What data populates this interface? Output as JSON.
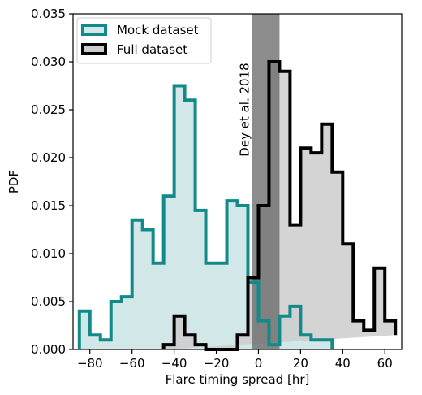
{
  "chart_data": {
    "type": "histogram",
    "xlabel": "Flare timing spread [hr]",
    "ylabel": "PDF",
    "xlim": [
      -88,
      68
    ],
    "ylim": [
      0,
      0.035
    ],
    "xticks": [
      -80,
      -60,
      -40,
      -20,
      0,
      20,
      40,
      60
    ],
    "yticks": [
      0.0,
      0.005,
      0.01,
      0.015,
      0.02,
      0.025,
      0.03,
      0.035
    ],
    "grid": false,
    "legend": "top-left",
    "series": [
      {
        "name": "Mock dataset",
        "edge_color": "#138a8a",
        "fill_color": "#d2e8e8",
        "bin_edges": [
          -85,
          -80,
          -75,
          -70,
          -65,
          -60,
          -55,
          -50,
          -45,
          -40,
          -35,
          -30,
          -25,
          -20,
          -15,
          -10,
          -5,
          0,
          5,
          10,
          15,
          20,
          25,
          30,
          35
        ],
        "values": [
          0.004,
          0.0015,
          0.001,
          0.005,
          0.0055,
          0.0135,
          0.0125,
          0.009,
          0.016,
          0.0275,
          0.026,
          0.0145,
          0.009,
          0.009,
          0.0155,
          0.015,
          0.007,
          0.003,
          0.0005,
          0.0035,
          0.0045,
          0.0015,
          0.001,
          0.001
        ]
      },
      {
        "name": "Full dataset",
        "edge_color": "#000000",
        "fill_color": "#cccccc",
        "bin_edges": [
          -45,
          -40,
          -35,
          -30,
          -25,
          -20,
          -15,
          -10,
          -5,
          0,
          5,
          10,
          15,
          20,
          25,
          30,
          35,
          40,
          45,
          50,
          55,
          60,
          65
        ],
        "values": [
          0.0005,
          0.0035,
          0.0015,
          0.0005,
          0.0,
          0.0,
          0.0,
          0.0015,
          0.0075,
          0.015,
          0.03,
          0.029,
          0.013,
          0.021,
          0.0205,
          0.0235,
          0.0185,
          0.011,
          0.003,
          0.002,
          0.0085,
          0.003,
          0.0015
        ]
      }
    ],
    "band": {
      "label": "Dey et al. 2018",
      "x_range": [
        -3,
        10
      ],
      "color": "#666666"
    },
    "tick_labels_x": [
      "−80",
      "−60",
      "−40",
      "−20",
      "0",
      "20",
      "40",
      "60"
    ],
    "tick_labels_y": [
      "0.000",
      "0.005",
      "0.010",
      "0.015",
      "0.020",
      "0.025",
      "0.030",
      "0.035"
    ]
  }
}
